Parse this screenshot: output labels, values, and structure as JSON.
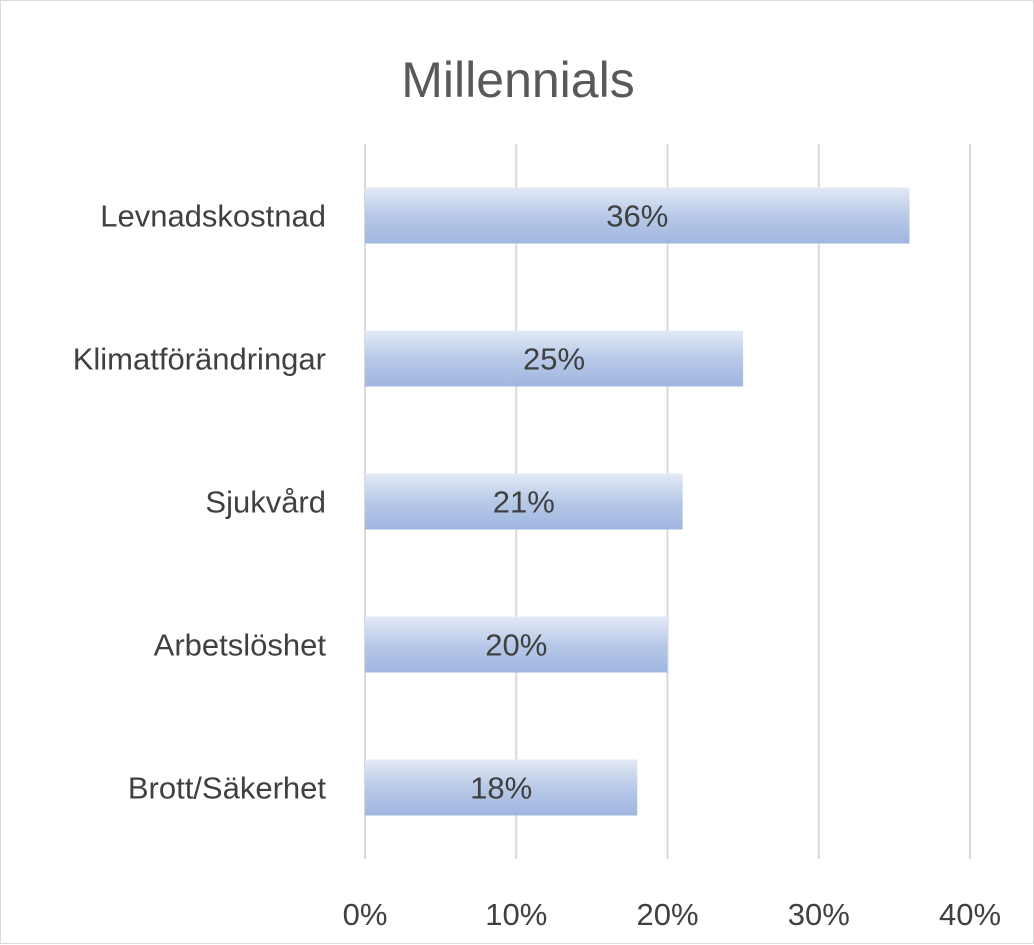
{
  "chart_data": {
    "type": "bar",
    "orientation": "horizontal",
    "title": "Millennials",
    "categories": [
      "Levnadskostnad",
      "Klimatförändringar",
      "Sjukvård",
      "Arbetslöshet",
      "Brott/Säkerhet"
    ],
    "values": [
      36,
      25,
      21,
      20,
      18
    ],
    "value_labels": [
      "36%",
      "25%",
      "21%",
      "20%",
      "18%"
    ],
    "xlim": [
      0,
      40
    ],
    "x_ticks": [
      0,
      10,
      20,
      30,
      40
    ],
    "x_tick_labels": [
      "0%",
      "10%",
      "20%",
      "30%",
      "40%"
    ],
    "grid": true,
    "bar_color": "#b4c7e7",
    "legend": "none"
  }
}
